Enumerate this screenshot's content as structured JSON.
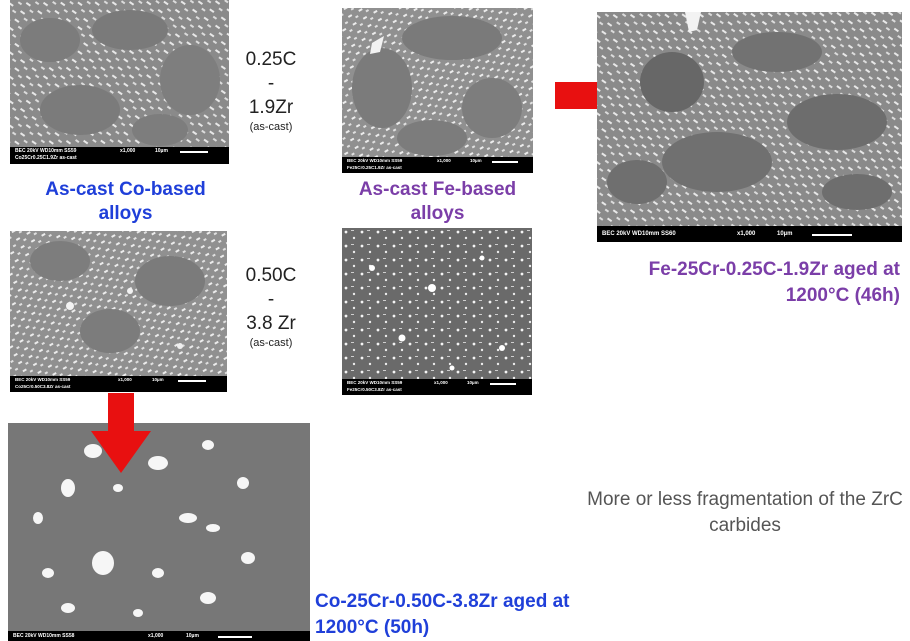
{
  "colors": {
    "co_label": "#1f3fd9",
    "fe_label": "#7b3ea8",
    "arrow": "#e81010",
    "note": "#555555"
  },
  "composition_1": {
    "carbon": "0.25C",
    "dash": "-",
    "zirconium": "1.9Zr",
    "state": "(as-cast)"
  },
  "composition_2": {
    "carbon": "0.50C",
    "dash": "-",
    "zirconium": "3.8 Zr",
    "state": "(as-cast)"
  },
  "labels": {
    "co_ascast": "As-cast Co-based alloys",
    "fe_ascast": "As-cast Fe-based alloys",
    "fe_aged": "Fe-25Cr-0.25C-1.9Zr aged at 1200°C (46h)",
    "co_aged": "Co-25Cr-0.50C-3.8Zr aged at 1200°C (50h)",
    "note": "More or less fragmentation of the ZrC carbides"
  },
  "micrographs": {
    "co_025": {
      "line1": "BEC  20kV    WD10mm SS59",
      "line2": "Co25Cr0.25C1.9Zr as-cast",
      "mag": "x1,000",
      "scale": "10µm"
    },
    "fe_025": {
      "line1": "BEC  20kV    WD10mm SS59",
      "line2": "Fe25Cr0.25C1.9Zr as-cast",
      "mag": "x1,000",
      "scale": "10µm"
    },
    "fe_aged": {
      "line1": "BEC  20kV    WD10mm SS60",
      "line2": "",
      "mag": "x1,000",
      "scale": "10µm"
    },
    "co_050": {
      "line1": "BEC  20kV    WD10mm SS59",
      "line2": "Co25Cr0.50C3.8Zr as-cast",
      "mag": "x1,000",
      "scale": "10µm"
    },
    "fe_050": {
      "line1": "BEC  20kV    WD10mm SS59",
      "line2": "Fe25Cr0.50C3.8Zr as-cast",
      "mag": "x1,000",
      "scale": "10µm"
    },
    "co_aged": {
      "line1": "BEC  20kV    WD10mm SS58",
      "line2": "",
      "mag": "x1,000",
      "scale": "10µm"
    }
  }
}
